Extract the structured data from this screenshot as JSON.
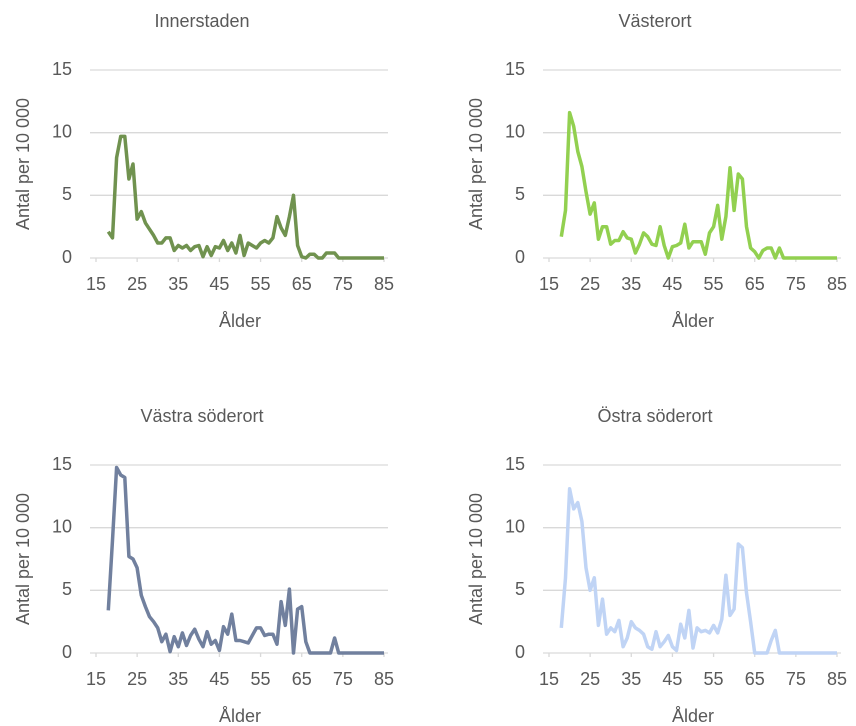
{
  "chart_data": [
    {
      "type": "line",
      "title": "Innerstaden",
      "x_label": "Ålder",
      "y_label": "Antal per 10 000",
      "x": [
        18,
        19,
        20,
        21,
        22,
        23,
        24,
        25,
        26,
        27,
        28,
        29,
        30,
        31,
        32,
        33,
        34,
        35,
        36,
        37,
        38,
        39,
        40,
        41,
        42,
        43,
        44,
        45,
        46,
        47,
        48,
        49,
        50,
        51,
        52,
        53,
        54,
        55,
        56,
        57,
        58,
        59,
        60,
        61,
        62,
        63,
        64,
        65,
        66,
        67,
        68,
        69,
        70,
        71,
        72,
        73,
        74,
        75,
        76,
        77,
        78,
        79,
        80,
        81,
        82,
        83,
        84,
        85
      ],
      "values": [
        2.1,
        1.6,
        8,
        9.7,
        9.7,
        6.3,
        7.5,
        3.1,
        3.7,
        2.8,
        2.3,
        1.8,
        1.2,
        1.2,
        1.6,
        1.6,
        0.6,
        1.0,
        0.8,
        1.0,
        0.6,
        0.9,
        1.0,
        0.1,
        0.9,
        0.2,
        0.9,
        0.8,
        1.4,
        0.6,
        1.2,
        0.4,
        1.8,
        0.2,
        1.2,
        1.0,
        0.8,
        1.2,
        1.4,
        1.2,
        1.6,
        3.3,
        2.4,
        1.8,
        3.3,
        5.0,
        1.0,
        0.1,
        0,
        0.3,
        0.3,
        0,
        0,
        0.4,
        0.4,
        0.4,
        0,
        0,
        0,
        0,
        0,
        0,
        0,
        0,
        0,
        0,
        0,
        0
      ],
      "color": "#70924f",
      "xlim": [
        15,
        85
      ],
      "xticks": [
        15,
        25,
        35,
        45,
        55,
        65,
        75,
        85
      ],
      "ylim": [
        0,
        15
      ],
      "yticks": [
        0,
        5,
        10,
        15
      ],
      "grid": true
    },
    {
      "type": "line",
      "title": "Västerort",
      "x_label": "Ålder",
      "y_label": "Antal per 10 000",
      "x": [
        18,
        19,
        20,
        21,
        22,
        23,
        24,
        25,
        26,
        27,
        28,
        29,
        30,
        31,
        32,
        33,
        34,
        35,
        36,
        37,
        38,
        39,
        40,
        41,
        42,
        43,
        44,
        45,
        46,
        47,
        48,
        49,
        50,
        51,
        52,
        53,
        54,
        55,
        56,
        57,
        58,
        59,
        60,
        61,
        62,
        63,
        64,
        65,
        66,
        67,
        68,
        69,
        70,
        71,
        72,
        73,
        74,
        75,
        76,
        77,
        78,
        79,
        80,
        81,
        82,
        83,
        84,
        85
      ],
      "values": [
        1.7,
        3.8,
        11.6,
        10.5,
        8.5,
        7.3,
        5.3,
        3.5,
        4.4,
        1.5,
        2.5,
        2.5,
        1.1,
        1.4,
        1.4,
        2.1,
        1.6,
        1.5,
        0.4,
        1.1,
        2.0,
        1.7,
        1.1,
        1.0,
        2.5,
        1.0,
        0,
        0.9,
        1.0,
        1.2,
        2.7,
        0.8,
        1.3,
        1.3,
        1.3,
        0.3,
        2.0,
        2.5,
        4.2,
        1.5,
        3.3,
        7.2,
        3.8,
        6.7,
        6.3,
        2.5,
        0.8,
        0.5,
        0,
        0.6,
        0.8,
        0.8,
        0,
        0.8,
        0,
        0,
        0,
        0,
        0,
        0,
        0,
        0,
        0,
        0,
        0,
        0,
        0,
        0
      ],
      "color": "#92d050",
      "xlim": [
        15,
        85
      ],
      "xticks": [
        15,
        25,
        35,
        45,
        55,
        65,
        75,
        85
      ],
      "ylim": [
        0,
        15
      ],
      "yticks": [
        0,
        5,
        10,
        15
      ],
      "grid": true
    },
    {
      "type": "line",
      "title": "Västra söderort",
      "x_label": "Ålder",
      "y_label": "Antal per 10 000",
      "x": [
        18,
        19,
        20,
        21,
        22,
        23,
        24,
        25,
        26,
        27,
        28,
        29,
        30,
        31,
        32,
        33,
        34,
        35,
        36,
        37,
        38,
        39,
        40,
        41,
        42,
        43,
        44,
        45,
        46,
        47,
        48,
        49,
        50,
        51,
        52,
        53,
        54,
        55,
        56,
        57,
        58,
        59,
        60,
        61,
        62,
        63,
        64,
        65,
        66,
        67,
        68,
        69,
        70,
        71,
        72,
        73,
        74,
        75,
        76,
        77,
        78,
        79,
        80,
        81,
        82,
        83,
        84,
        85
      ],
      "values": [
        3.4,
        9,
        14.8,
        14.2,
        14,
        7.7,
        7.5,
        6.8,
        4.6,
        3.7,
        2.9,
        2.5,
        2.0,
        0.9,
        1.5,
        0.1,
        1.3,
        0.5,
        1.6,
        0.6,
        1.4,
        1.9,
        1.1,
        0.5,
        1.7,
        0.7,
        1.0,
        0.2,
        2.1,
        1.5,
        3.1,
        1.0,
        1.0,
        0.9,
        0.8,
        1.4,
        2.0,
        2.0,
        1.4,
        1.5,
        1.5,
        0.7,
        4.1,
        2.2,
        5.1,
        0,
        3.5,
        3.7,
        0.9,
        0,
        0,
        0,
        0,
        0,
        0,
        1.2,
        0,
        0,
        0,
        0,
        0,
        0,
        0,
        0,
        0,
        0,
        0,
        0
      ],
      "color": "#71809e",
      "xlim": [
        15,
        85
      ],
      "xticks": [
        15,
        25,
        35,
        45,
        55,
        65,
        75,
        85
      ],
      "ylim": [
        0,
        15
      ],
      "yticks": [
        0,
        5,
        10,
        15
      ],
      "grid": true
    },
    {
      "type": "line",
      "title": "Östra söderort",
      "x_label": "Ålder",
      "y_label": "Antal per 10 000",
      "x": [
        18,
        19,
        20,
        21,
        22,
        23,
        24,
        25,
        26,
        27,
        28,
        29,
        30,
        31,
        32,
        33,
        34,
        35,
        36,
        37,
        38,
        39,
        40,
        41,
        42,
        43,
        44,
        45,
        46,
        47,
        48,
        49,
        50,
        51,
        52,
        53,
        54,
        55,
        56,
        57,
        58,
        59,
        60,
        61,
        62,
        63,
        64,
        65,
        66,
        67,
        68,
        69,
        70,
        71,
        72,
        73,
        74,
        75,
        76,
        77,
        78,
        79,
        80,
        81,
        82,
        83,
        84,
        85
      ],
      "values": [
        2,
        6,
        13.1,
        11.5,
        12,
        10.5,
        6.8,
        5,
        6,
        2.2,
        4.3,
        1.5,
        2.0,
        1.7,
        2.6,
        0.5,
        1.2,
        2.5,
        2.0,
        1.8,
        1.5,
        0.5,
        0.3,
        1.7,
        0.5,
        0.9,
        1.4,
        0.5,
        0.2,
        2.3,
        1.2,
        3.4,
        0.4,
        2.0,
        1.7,
        1.8,
        1.6,
        2.2,
        1.6,
        2.7,
        6.2,
        3.0,
        3.5,
        8.7,
        8.4,
        4.8,
        2.5,
        0,
        0,
        0,
        0,
        1.0,
        1.8,
        0,
        0,
        0,
        0,
        0,
        0,
        0,
        0,
        0,
        0,
        0,
        0,
        0,
        0,
        0
      ],
      "color": "#c0d4f5",
      "xlim": [
        15,
        85
      ],
      "xticks": [
        15,
        25,
        35,
        45,
        55,
        65,
        75,
        85
      ],
      "ylim": [
        0,
        15
      ],
      "yticks": [
        0,
        5,
        10,
        15
      ],
      "grid": true
    }
  ]
}
